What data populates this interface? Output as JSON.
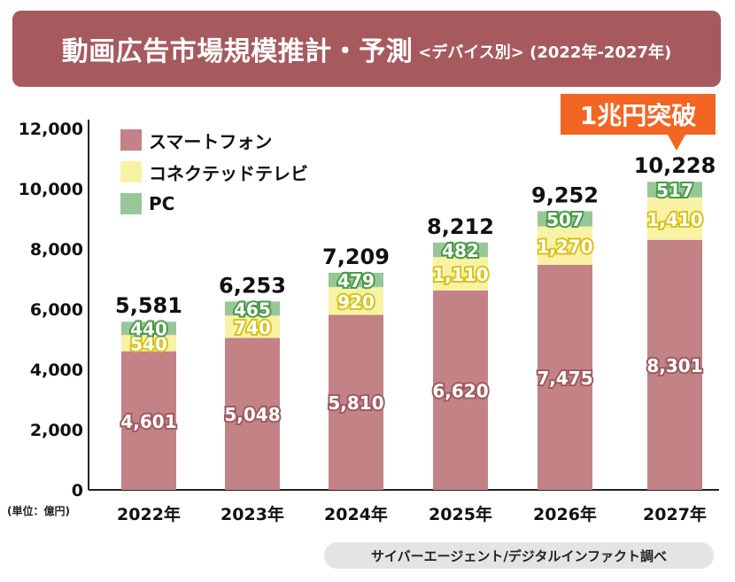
{
  "title": {
    "main": "動画広告市場規模推計・予測",
    "sub": "<デバイス別> (2022年-2027年)"
  },
  "badge": "1兆円突破",
  "unit_label": "(単位：億円)",
  "source": "サイバーエージェント/デジタルインファクト調べ",
  "colors": {
    "smartphone": "#c38286",
    "ctv": "#f8f2a5",
    "pc": "#98c797",
    "pc_label": "#4a9a4a",
    "ctv_label": "#d9c21a",
    "smartphone_label": "#9f5a60",
    "badge": "#f26522",
    "banner": "#a65a5e"
  },
  "chart_data": {
    "type": "bar",
    "stacked": true,
    "categories": [
      "2022年",
      "2023年",
      "2024年",
      "2025年",
      "2026年",
      "2027年"
    ],
    "series": [
      {
        "name": "スマートフォン",
        "values": [
          4601,
          5048,
          5810,
          6620,
          7475,
          8301
        ]
      },
      {
        "name": "コネクテッドテレビ",
        "values": [
          540,
          740,
          920,
          1110,
          1270,
          1410
        ]
      },
      {
        "name": "PC",
        "values": [
          440,
          465,
          479,
          482,
          507,
          517
        ]
      }
    ],
    "totals": [
      5581,
      6253,
      7209,
      8212,
      9252,
      10228
    ],
    "ylim": [
      0,
      12000
    ],
    "yticks": [
      0,
      2000,
      4000,
      6000,
      8000,
      10000,
      12000
    ],
    "ytick_labels": [
      "0",
      "2,000",
      "4,000",
      "6,000",
      "8,000",
      "10,000",
      "12,000"
    ],
    "legend_position": "top-left",
    "grid": false
  }
}
